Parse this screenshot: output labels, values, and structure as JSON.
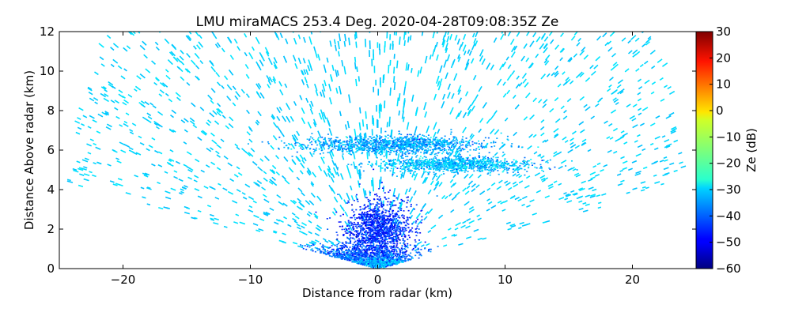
{
  "chart_data": {
    "type": "heatmap",
    "title": "LMU miraMACS 253.4 Deg. 2020-04-28T09:08:35Z  Ze",
    "xlabel": "Distance from radar (km)",
    "ylabel": "Distance Above radar  (km)",
    "xlim": [
      -25,
      25
    ],
    "ylim": [
      0,
      12
    ],
    "xticks": [
      -20,
      -10,
      0,
      10,
      20
    ],
    "xtick_labels": [
      "−20",
      "−10",
      "0",
      "10",
      "20"
    ],
    "yticks": [
      0,
      2,
      4,
      6,
      8,
      10,
      12
    ],
    "ytick_labels": [
      "0",
      "2",
      "4",
      "6",
      "8",
      "10",
      "12"
    ],
    "grid": false,
    "colorbar": {
      "label": "Ze (dB)",
      "colormap": "jet",
      "range": [
        -60,
        30
      ],
      "ticks": [
        -60,
        -50,
        -40,
        -30,
        -20,
        -10,
        0,
        10,
        20,
        30
      ],
      "tick_labels": [
        "−60",
        "−50",
        "−40",
        "−30",
        "−20",
        "−10",
        "0",
        "10",
        "20",
        "30"
      ]
    },
    "scan": {
      "range_max_km": 24.6,
      "elevation_min_deg": 10,
      "elevation_max_deg": 170
    },
    "features": [
      {
        "center_x_km": -2,
        "center_y_km": 0.6,
        "spread_x_km": 5.5,
        "spread_y_km": 0.6,
        "ze_db": -40
      },
      {
        "center_x_km": 0,
        "center_y_km": 0.3,
        "spread_x_km": 2.5,
        "spread_y_km": 0.3,
        "ze_db": -33
      },
      {
        "center_x_km": 0,
        "center_y_km": 2.0,
        "spread_x_km": 2.5,
        "spread_y_km": 1.5,
        "ze_db": -45
      },
      {
        "center_x_km": 1,
        "center_y_km": 6.3,
        "spread_x_km": 7.0,
        "spread_y_km": 0.45,
        "ze_db": -34
      },
      {
        "center_x_km": 6,
        "center_y_km": 5.3,
        "spread_x_km": 6.0,
        "spread_y_km": 0.4,
        "ze_db": -32
      }
    ],
    "background_ze_db": -30
  }
}
